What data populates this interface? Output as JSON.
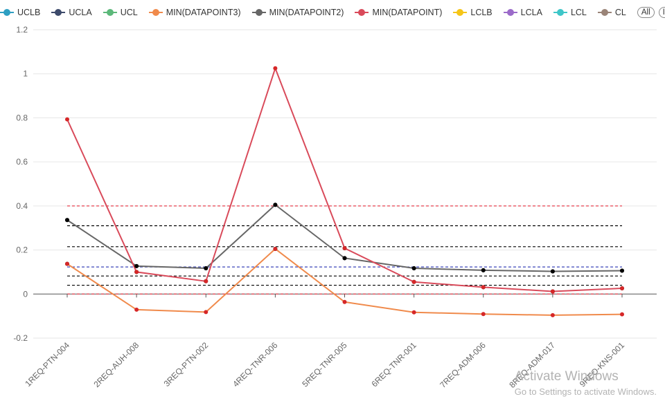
{
  "legend": {
    "items": [
      {
        "label": "UCLB",
        "color": "#2e9fc2",
        "key": "uclb"
      },
      {
        "label": "UCLA",
        "color": "#3d4a6b",
        "key": "ucla"
      },
      {
        "label": "UCL",
        "color": "#5cb87a",
        "key": "ucl"
      },
      {
        "label": "MIN(DATAPOINT3)",
        "color": "#f08a4b",
        "key": "min3"
      },
      {
        "label": "MIN(DATAPOINT2)",
        "color": "#666666",
        "key": "min2"
      },
      {
        "label": "MIN(DATAPOINT)",
        "color": "#d94a5a",
        "key": "min1"
      },
      {
        "label": "LCLB",
        "color": "#f5c518",
        "key": "lclb"
      },
      {
        "label": "LCLA",
        "color": "#9b6bc9",
        "key": "lcla"
      },
      {
        "label": "LCL",
        "color": "#3ec6c8",
        "key": "lcl"
      },
      {
        "label": "CL",
        "color": "#9a8478",
        "key": "cl"
      }
    ],
    "all_label": "All",
    "inv_label": "Inv"
  },
  "watermark": {
    "title": "Activate Windows",
    "subtitle": "Go to Settings to activate Windows."
  },
  "chart_data": {
    "type": "line",
    "ylim": [
      -0.2,
      1.2
    ],
    "yticks": [
      -0.2,
      0,
      0.2,
      0.4,
      0.6,
      0.8,
      1,
      1.2
    ],
    "grid": true,
    "legend_position": "top",
    "categories": [
      "1REQ-PTN-004",
      "2REQ-AUH-008",
      "3REQ-PTN-002",
      "4REQ-TNR-006",
      "5REQ-TNR-005",
      "6REQ-TNR-001",
      "7REQ-ADM-006",
      "8REQ-ADM-017",
      "9REQ-KNS-001"
    ],
    "series": [
      {
        "name": "MIN(DATAPOINT3)",
        "color": "#f08a4b",
        "marker": "#d62728",
        "values": [
          0.137,
          -0.071,
          -0.082,
          0.205,
          -0.036,
          -0.083,
          -0.091,
          -0.096,
          -0.092
        ]
      },
      {
        "name": "MIN(DATAPOINT2)",
        "color": "#666666",
        "marker": "#000000",
        "values": [
          0.336,
          0.127,
          0.117,
          0.405,
          0.163,
          0.117,
          0.108,
          0.103,
          0.106
        ]
      },
      {
        "name": "MIN(DATAPOINT)",
        "color": "#d94a5a",
        "marker": "#d62728",
        "values": [
          0.793,
          0.1,
          0.058,
          1.025,
          0.208,
          0.055,
          0.031,
          0.012,
          0.026
        ]
      }
    ],
    "point_markers": [
      {
        "color": "#000000",
        "values": [
          0.137,
          0.127,
          0.058,
          0.205,
          0.208,
          0.117,
          0.108,
          0.103,
          0.106
        ]
      },
      {
        "color": "#000000",
        "values": [
          0.336,
          0.1,
          0.117,
          0.405,
          0.163,
          0.055,
          0.031,
          0.012,
          0.026
        ]
      }
    ],
    "control_lines": [
      {
        "name": "UCL",
        "value": 0.4,
        "color": "#e8414f",
        "dash": "4,3"
      },
      {
        "name": "UCLB",
        "value": 0.31,
        "color": "#000000",
        "dash": "4,3"
      },
      {
        "name": "UCLA",
        "value": 0.215,
        "color": "#000000",
        "dash": "4,3"
      },
      {
        "name": "CL",
        "value": 0.123,
        "color": "#3a43b8",
        "dash": "4,3"
      },
      {
        "name": "LCLA",
        "value": 0.082,
        "color": "#000000",
        "dash": "4,3"
      },
      {
        "name": "LCLB",
        "value": 0.04,
        "color": "#000000",
        "dash": "4,3"
      },
      {
        "name": "LCL",
        "value": 0.0,
        "color": "#e8414f",
        "dash": "4,3"
      }
    ]
  }
}
